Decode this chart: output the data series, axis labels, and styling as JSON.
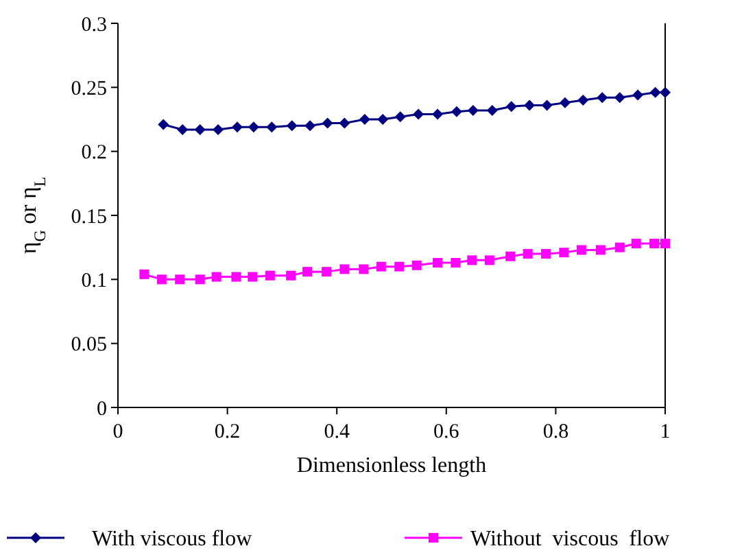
{
  "chart_data": {
    "type": "line",
    "xlabel": "Dimensionless length",
    "ylabel": "η$_{G}$ or η$_{L}$",
    "xlim": [
      0,
      1
    ],
    "xticks": [
      0,
      0.2,
      0.4,
      0.6,
      0.8,
      1
    ],
    "ylim": [
      0,
      0.3
    ],
    "yticks": [
      0,
      0.05,
      0.1,
      0.15,
      0.2,
      0.25,
      0.3
    ],
    "grid": false,
    "legend": "bottom",
    "line_style": "solid",
    "series": [
      {
        "name": "With viscous flow",
        "color": "#000080",
        "marker": "diamond",
        "x": [
          0.083,
          0.118,
          0.15,
          0.183,
          0.218,
          0.248,
          0.281,
          0.318,
          0.351,
          0.383,
          0.414,
          0.451,
          0.484,
          0.516,
          0.549,
          0.584,
          0.619,
          0.649,
          0.684,
          0.719,
          0.752,
          0.784,
          0.817,
          0.85,
          0.885,
          0.917,
          0.95,
          0.982,
          1.0
        ],
        "values": [
          0.221,
          0.217,
          0.217,
          0.217,
          0.219,
          0.219,
          0.219,
          0.22,
          0.22,
          0.222,
          0.222,
          0.225,
          0.225,
          0.227,
          0.229,
          0.229,
          0.231,
          0.232,
          0.232,
          0.235,
          0.236,
          0.236,
          0.238,
          0.24,
          0.242,
          0.242,
          0.244,
          0.246,
          0.246
        ]
      },
      {
        "name": "Without  viscous  flow",
        "color": "#ff00ff",
        "marker": "square",
        "x": [
          0.048,
          0.08,
          0.113,
          0.15,
          0.18,
          0.216,
          0.246,
          0.278,
          0.316,
          0.346,
          0.381,
          0.414,
          0.449,
          0.481,
          0.514,
          0.546,
          0.584,
          0.617,
          0.647,
          0.679,
          0.717,
          0.749,
          0.782,
          0.815,
          0.847,
          0.882,
          0.917,
          0.947,
          0.98,
          1.0
        ],
        "values": [
          0.104,
          0.1,
          0.1,
          0.1,
          0.102,
          0.102,
          0.102,
          0.103,
          0.103,
          0.106,
          0.106,
          0.108,
          0.108,
          0.11,
          0.11,
          0.111,
          0.113,
          0.113,
          0.115,
          0.115,
          0.118,
          0.12,
          0.12,
          0.121,
          0.123,
          0.123,
          0.125,
          0.128,
          0.128,
          0.128
        ]
      }
    ]
  }
}
